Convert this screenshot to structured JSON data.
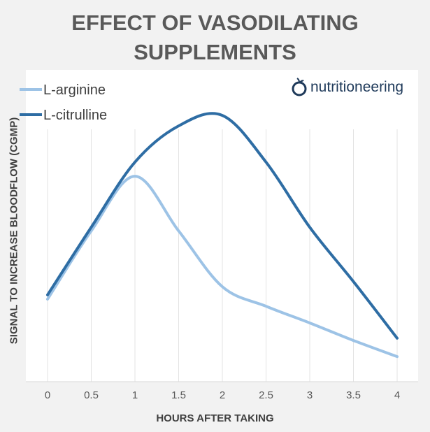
{
  "chart_data": {
    "type": "line",
    "title": "EFFECT OF VASODILATING SUPPLEMENTS",
    "xlabel": "HOURS AFTER TAKING",
    "ylabel": "SIGNAL TO INCREASE BLOODFLOW (CGMP)",
    "x": [
      0,
      0.5,
      1,
      1.5,
      2,
      2.5,
      3,
      3.5,
      4
    ],
    "x_tick_labels": [
      "0",
      "0.5",
      "1",
      "1.5",
      "2",
      "2.5",
      "3",
      "3.5",
      "4"
    ],
    "xlim": [
      0,
      4
    ],
    "ylim": [
      0,
      100
    ],
    "y_ticks_shown": false,
    "grid": "vertical",
    "smooth": true,
    "legend_position": "top-left",
    "series": [
      {
        "name": "L-arginine",
        "color": "#9dc3e6",
        "values": [
          28.9,
          53,
          72.3,
          53,
          33.3,
          26.4,
          20.5,
          14.3,
          8.6
        ]
      },
      {
        "name": "L-citrulline",
        "color": "#2e6da4",
        "values": [
          30.4,
          54.3,
          77.3,
          90.1,
          93.8,
          77.3,
          54.3,
          35.1,
          15.1
        ]
      }
    ]
  },
  "logo": {
    "text": "nutritioneering",
    "color": "#1f3a5a"
  }
}
